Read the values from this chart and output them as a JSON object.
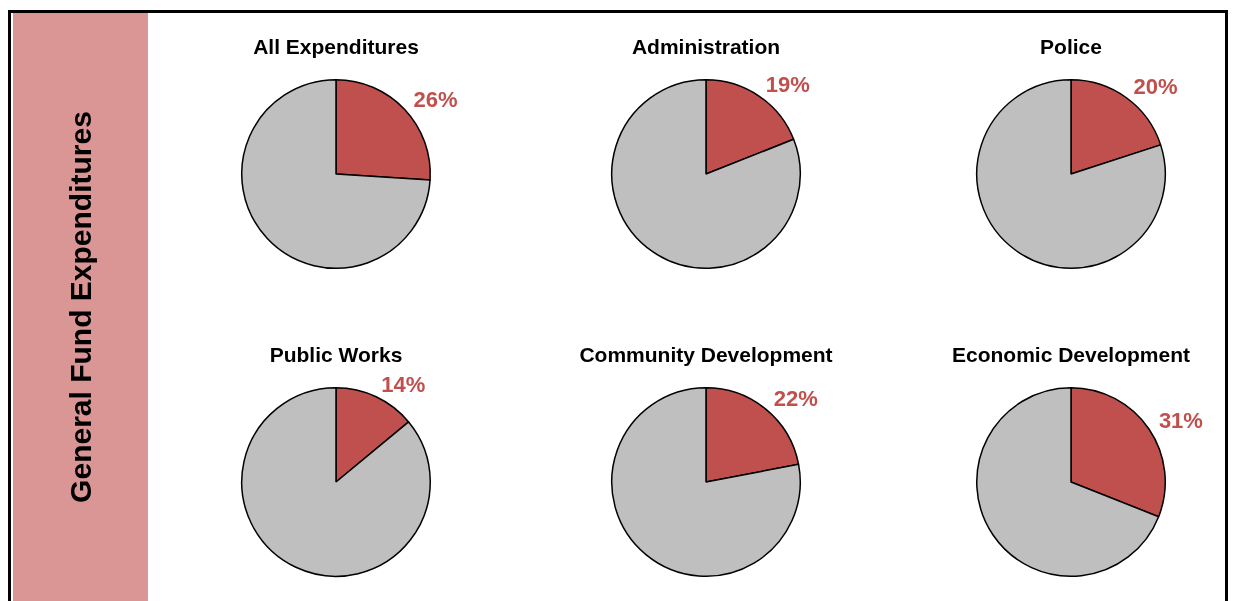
{
  "chart_data": [
    {
      "type": "other",
      "title": "General Fund Expenditures"
    },
    {
      "type": "pie",
      "title": "All Expenditures",
      "categories": [
        null,
        null
      ],
      "values": [
        26,
        74
      ],
      "colors": [
        "#c0504d",
        "#bfbfbf"
      ],
      "value_labels": [
        "26%",
        null
      ]
    },
    {
      "type": "pie",
      "title": "Administration",
      "categories": [
        null,
        null
      ],
      "values": [
        19,
        81
      ],
      "colors": [
        "#c0504d",
        "#bfbfbf"
      ],
      "value_labels": [
        "19%",
        null
      ]
    },
    {
      "type": "pie",
      "title": "Police",
      "categories": [
        null,
        null
      ],
      "values": [
        20,
        80
      ],
      "colors": [
        "#c0504d",
        "#bfbfbf"
      ],
      "value_labels": [
        "20%",
        null
      ]
    },
    {
      "type": "pie",
      "title": "Public Works",
      "categories": [
        null,
        null
      ],
      "values": [
        14,
        86
      ],
      "colors": [
        "#c0504d",
        "#bfbfbf"
      ],
      "value_labels": [
        "14%",
        null
      ]
    },
    {
      "type": "pie",
      "title": "Community Development",
      "categories": [
        null,
        null
      ],
      "values": [
        22,
        78
      ],
      "colors": [
        "#c0504d",
        "#bfbfbf"
      ],
      "value_labels": [
        "22%",
        null
      ]
    },
    {
      "type": "pie",
      "title": "Economic Development",
      "categories": [
        null,
        null
      ],
      "values": [
        31,
        69
      ],
      "colors": [
        "#c0504d",
        "#bfbfbf"
      ],
      "value_labels": [
        "31%",
        null
      ]
    }
  ]
}
